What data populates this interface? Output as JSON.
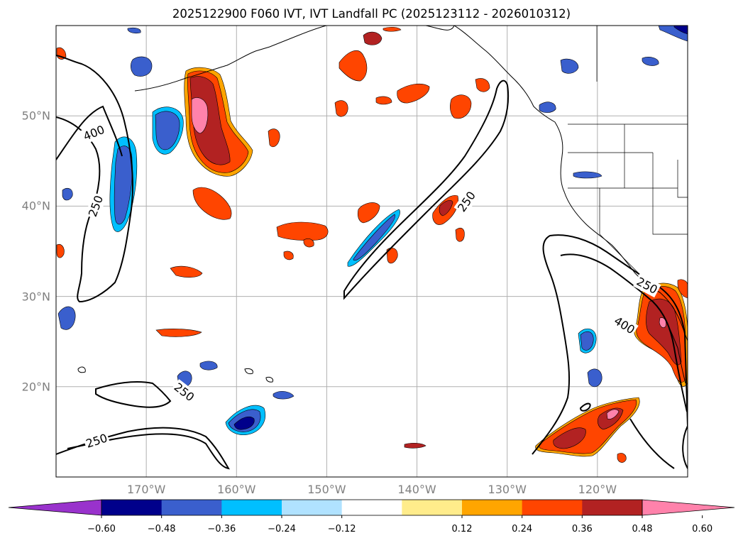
{
  "title": "2025122900 F060 IVT, IVT Landfall PC (2025123112 - 2026010312)",
  "map": {
    "lon_range": [
      -180,
      -110
    ],
    "lat_range": [
      10,
      60
    ],
    "lat_ticks": [
      {
        "value": 50,
        "label": "50°N"
      },
      {
        "value": 40,
        "label": "40°N"
      },
      {
        "value": 30,
        "label": "30°N"
      },
      {
        "value": 20,
        "label": "20°N"
      }
    ],
    "lon_ticks": [
      {
        "value": -170,
        "label": "170°W"
      },
      {
        "value": -160,
        "label": "160°W"
      },
      {
        "value": -150,
        "label": "150°W"
      },
      {
        "value": -140,
        "label": "140°W"
      },
      {
        "value": -130,
        "label": "130°W"
      },
      {
        "value": -120,
        "label": "120°W"
      }
    ],
    "contour_labels": [
      {
        "text": "400",
        "lon": -175.8,
        "lat": 48.1,
        "angle": -22
      },
      {
        "text": "250",
        "lon": -175.6,
        "lat": 40.0,
        "angle": -70
      },
      {
        "text": "250",
        "lon": -134.5,
        "lat": 40.5,
        "angle": -55
      },
      {
        "text": "250",
        "lon": -165.8,
        "lat": 19.4,
        "angle": 38
      },
      {
        "text": "250",
        "lon": -175.5,
        "lat": 14.0,
        "angle": -18
      },
      {
        "text": "250",
        "lon": -114.5,
        "lat": 31.2,
        "angle": 28
      },
      {
        "text": "400",
        "lon": -117.0,
        "lat": 26.8,
        "angle": 32
      }
    ]
  },
  "colorbar": {
    "colors": [
      "#9932cc",
      "#00008b",
      "#3a5fcd",
      "#00bfff",
      "#b0e2ff",
      "#ffffff",
      "#ffec8b",
      "#ffa500",
      "#ff4500",
      "#b22222",
      "#ff82ab"
    ],
    "labels": [
      "−0.60",
      "−0.48",
      "−0.36",
      "−0.24",
      "−0.12",
      "0.12",
      "0.24",
      "0.36",
      "0.48",
      "0.60"
    ]
  }
}
